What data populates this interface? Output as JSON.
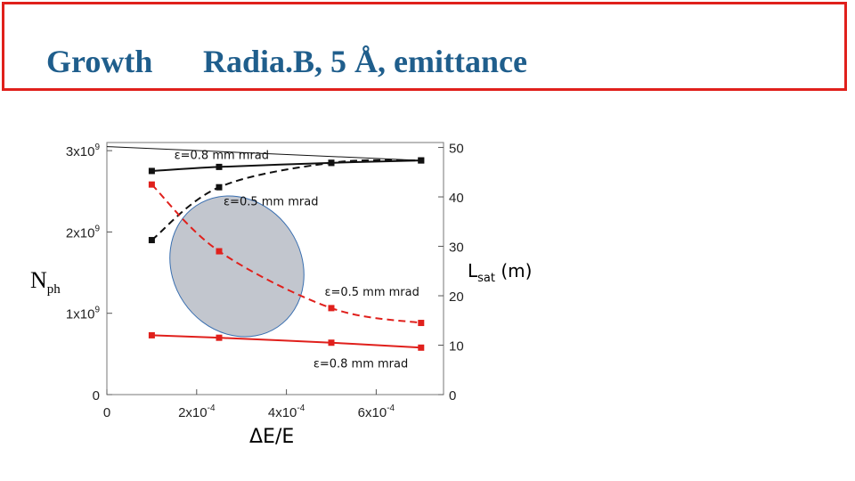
{
  "slide": {
    "title_left": "Growth",
    "title_right": "Radia.B, 5 Å, emittance"
  },
  "chart_data": {
    "type": "line",
    "x_axis": {
      "label": "ΔE/E",
      "range": [
        0,
        0.00075
      ],
      "ticks": [
        0,
        0.0002,
        0.0004,
        0.0006
      ],
      "tick_labels": [
        "0",
        "2x10-4",
        "4x10-4",
        "6x10-4"
      ]
    },
    "y_left": {
      "label": "Nph",
      "range": [
        0,
        3100000000
      ],
      "ticks": [
        0,
        1000000000,
        2000000000,
        3000000000
      ],
      "tick_labels": [
        "0",
        "1x109",
        "2x109",
        "3x109"
      ]
    },
    "y_right": {
      "label": "Lsat (m)",
      "range": [
        0,
        51
      ],
      "ticks": [
        0,
        10,
        20,
        30,
        40,
        50
      ],
      "tick_labels": [
        "0",
        "10",
        "20",
        "30",
        "40",
        "50"
      ]
    },
    "series": [
      {
        "axis": "left",
        "color": "#111111",
        "dash": false,
        "marker": "square",
        "x": [
          0.0001,
          0.00025,
          0.0005,
          0.0007
        ],
        "y": [
          2750000000,
          2800000000,
          2850000000,
          2880000000
        ]
      },
      {
        "axis": "left",
        "color": "#111111",
        "dash": true,
        "marker": "square",
        "x": [
          0.0001,
          0.00025,
          0.0005,
          0.0007
        ],
        "y": [
          1900000000,
          2550000000,
          2850000000,
          2880000000
        ]
      },
      {
        "axis": "right",
        "color": "#e0201c",
        "dash": true,
        "marker": "square",
        "x": [
          0.0001,
          0.00025,
          0.0005,
          0.0007
        ],
        "y": [
          42.5,
          29,
          17.5,
          14.5
        ]
      },
      {
        "axis": "right",
        "color": "#e0201c",
        "dash": false,
        "marker": "square",
        "x": [
          0.0001,
          0.00025,
          0.0005,
          0.0007
        ],
        "y": [
          12,
          11.5,
          10.5,
          9.5
        ]
      }
    ],
    "reference_line": {
      "axis": "left",
      "color": "#111111",
      "x": [
        0,
        0.0007
      ],
      "y": [
        3050000000,
        2880000000
      ]
    },
    "annotations": [
      {
        "text": "ε=0.8 mm mrad",
        "x": 0.00015,
        "y": 2900000000,
        "axis": "left"
      },
      {
        "text": "ε=0.5 mm mrad",
        "x": 0.00026,
        "y": 2330000000,
        "axis": "left"
      },
      {
        "text": "ε=0.5 mm mrad",
        "x": 0.000485,
        "y": 20,
        "axis": "right"
      },
      {
        "text": "ε=0.8 mm mrad",
        "x": 0.00046,
        "y": 5.5,
        "axis": "right"
      }
    ],
    "highlight_ellipse": {
      "fill": "#c2c6ce",
      "stroke": "#3a6fb0"
    }
  }
}
